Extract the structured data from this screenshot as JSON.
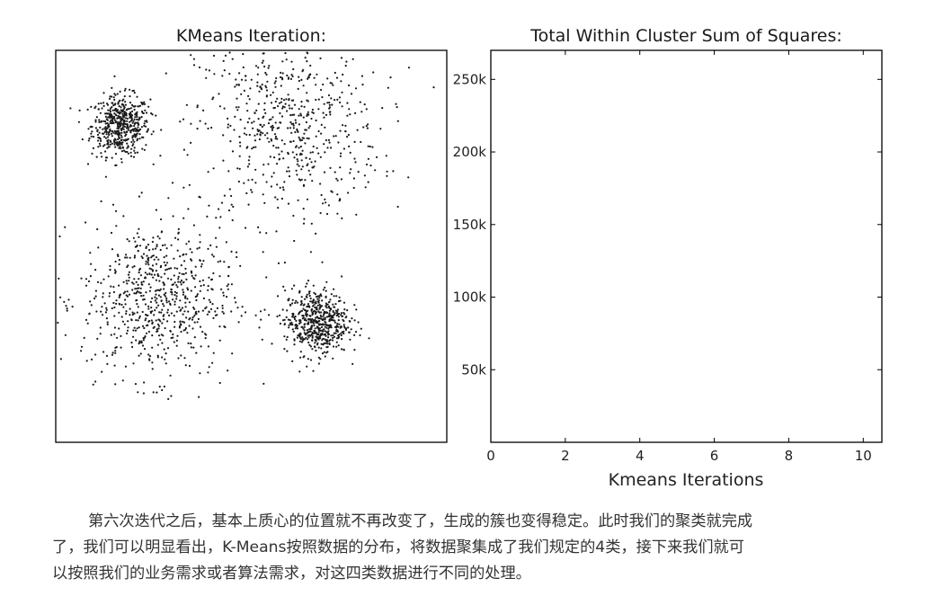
{
  "chart_data": [
    {
      "type": "scatter",
      "title": "KMeans Iteration:",
      "axes_visible": false,
      "marker_color": "#1a1a1a",
      "clusters": [
        {
          "center": [
            -7.5,
            7.0
          ],
          "spread": 1.0,
          "count": 520
        },
        {
          "center": [
            4.0,
            7.0
          ],
          "spread": 3.2,
          "count": 620
        },
        {
          "center": [
            -5.0,
            -4.5
          ],
          "spread": 2.6,
          "count": 700
        },
        {
          "center": [
            6.0,
            -6.0
          ],
          "spread": 1.1,
          "count": 560
        }
      ],
      "xlim": [
        -12,
        15
      ],
      "ylim": [
        -14,
        12
      ]
    },
    {
      "type": "line",
      "title": "Total Within Cluster Sum of Squares:",
      "xlabel": "Kmeans Iterations",
      "ylabel": "",
      "xlim": [
        0,
        10.5
      ],
      "ylim": [
        0,
        270000
      ],
      "x_ticks": [
        0,
        2,
        4,
        6,
        8,
        10
      ],
      "y_ticks": [
        50000,
        100000,
        150000,
        200000,
        250000
      ],
      "y_tick_labels": [
        "50k",
        "100k",
        "150k",
        "200k",
        "250k"
      ],
      "series": []
    }
  ],
  "caption": {
    "line1": "第六次迭代之后，基本上质心的位置就不再改变了，生成的簇也变得稳定。此时我们的聚类就完成",
    "line2": "了，我们可以明显看出，K-Means按照数据的分布，将数据聚集成了我们规定的4类，接下来我们就可",
    "line3": "以按照我们的业务需求或者算法需求，对这四类数据进行不同的处理。"
  }
}
